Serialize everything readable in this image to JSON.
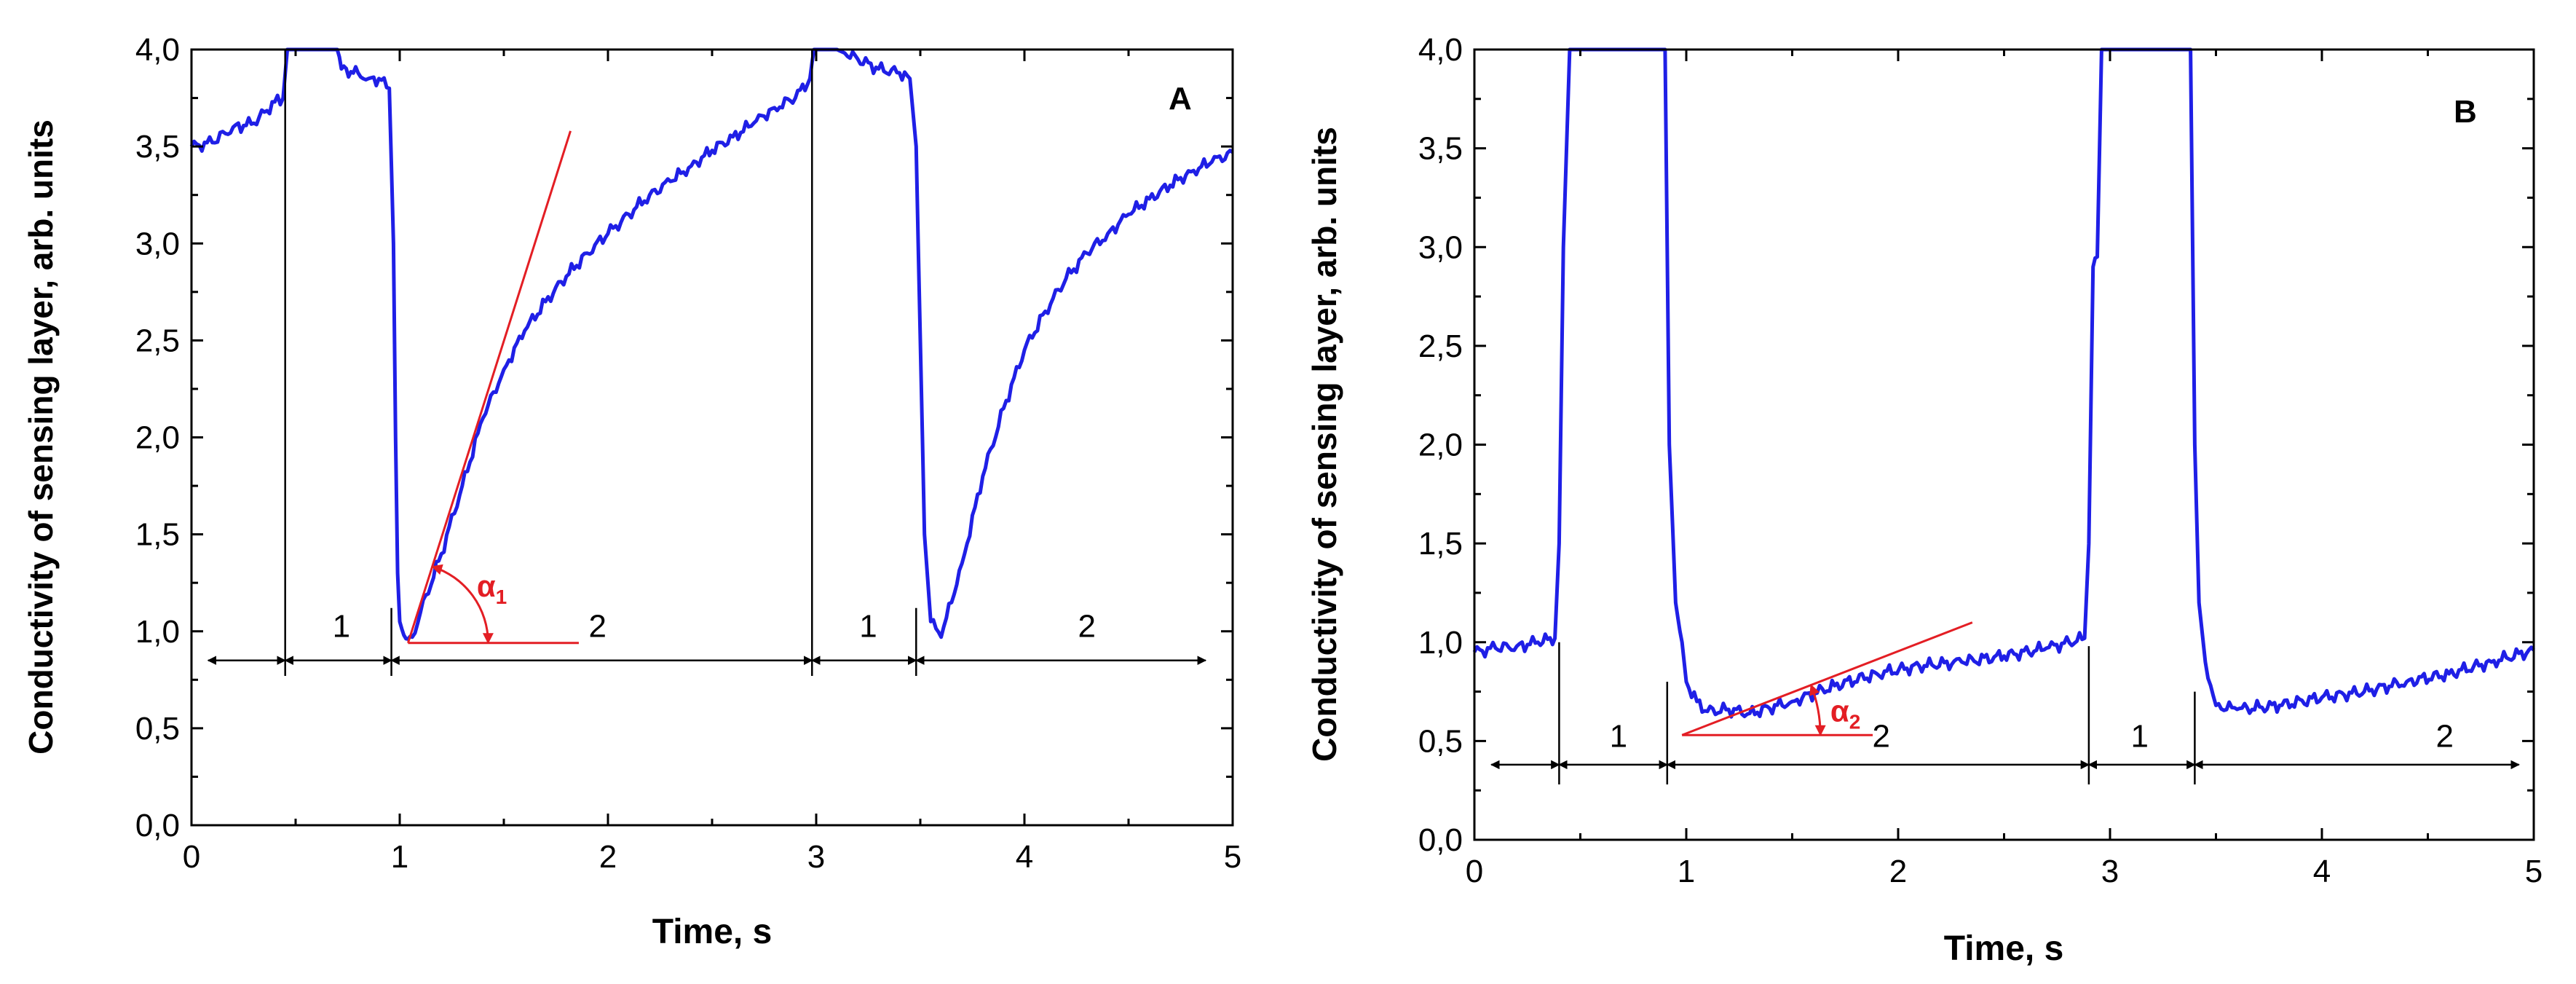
{
  "chart_data": [
    {
      "type": "line",
      "panel_letter": "A",
      "xlabel": "Time, s",
      "ylabel": "Conductivity of sensing layer, arb. units",
      "xlim": [
        0,
        5
      ],
      "ylim": [
        0,
        4
      ],
      "x_ticks": [
        "0",
        "1",
        "2",
        "3",
        "4",
        "5"
      ],
      "y_ticks": [
        "0,0",
        "0,5",
        "1,0",
        "1,5",
        "2,0",
        "2,5",
        "3,0",
        "3,5",
        "4,0"
      ],
      "series": [
        {
          "color": "#1f1fe6",
          "x": [
            0.0,
            0.1,
            0.2,
            0.3,
            0.4,
            0.44,
            0.46,
            0.5,
            0.6,
            0.7,
            0.72,
            0.8,
            0.85,
            0.9,
            0.95,
            0.97,
            0.98,
            0.99,
            1.0,
            1.02,
            1.04,
            1.06,
            1.1,
            1.2,
            1.3,
            1.4,
            1.5,
            1.6,
            1.7,
            1.8,
            1.9,
            2.0,
            2.1,
            2.2,
            2.3,
            2.4,
            2.5,
            2.6,
            2.7,
            2.8,
            2.9,
            2.97,
            2.99,
            3.0,
            3.1,
            3.2,
            3.3,
            3.4,
            3.45,
            3.48,
            3.5,
            3.52,
            3.55,
            3.6,
            3.7,
            3.8,
            3.9,
            4.0,
            4.1,
            4.2,
            4.3,
            4.4,
            4.5,
            4.6,
            4.7,
            4.8,
            4.9,
            5.0
          ],
          "y": [
            3.5,
            3.52,
            3.6,
            3.62,
            3.73,
            3.75,
            4.0,
            4.0,
            4.0,
            4.0,
            3.9,
            3.88,
            3.85,
            3.85,
            3.8,
            3.0,
            2.0,
            1.3,
            1.05,
            0.98,
            0.96,
            0.97,
            1.1,
            1.4,
            1.75,
            2.1,
            2.35,
            2.55,
            2.7,
            2.83,
            2.95,
            3.05,
            3.15,
            3.25,
            3.32,
            3.4,
            3.48,
            3.55,
            3.62,
            3.7,
            3.75,
            3.85,
            4.0,
            4.0,
            4.0,
            3.95,
            3.9,
            3.88,
            3.85,
            3.5,
            2.5,
            1.5,
            1.05,
            0.97,
            1.35,
            1.8,
            2.15,
            2.45,
            2.65,
            2.82,
            2.95,
            3.05,
            3.15,
            3.23,
            3.3,
            3.37,
            3.42,
            3.47
          ]
        }
      ],
      "annotations": {
        "segment_labels": [
          {
            "text": "1",
            "x": 0.72,
            "y": 0.97
          },
          {
            "text": "2",
            "x": 1.95,
            "y": 0.97
          },
          {
            "text": "1",
            "x": 3.25,
            "y": 0.97
          },
          {
            "text": "2",
            "x": 4.3,
            "y": 0.97
          }
        ],
        "vertical_markers": [
          {
            "x": 0.45,
            "y0": 0.77,
            "y1": 4.0
          },
          {
            "x": 0.96,
            "y0": 0.77,
            "y1": 1.12
          },
          {
            "x": 2.98,
            "y0": 0.77,
            "y1": 4.0
          },
          {
            "x": 3.48,
            "y0": 0.77,
            "y1": 1.12
          }
        ],
        "span_arrows": [
          {
            "from": 0.08,
            "to": 0.45,
            "y": 0.85
          },
          {
            "from": 0.45,
            "to": 0.96,
            "y": 0.85
          },
          {
            "from": 0.96,
            "to": 2.98,
            "y": 0.85
          },
          {
            "from": 2.98,
            "to": 3.48,
            "y": 0.85
          },
          {
            "from": 3.48,
            "to": 4.87,
            "y": 0.85
          }
        ],
        "angle_label": "α",
        "angle_subscript": "1",
        "angle_vertex": [
          1.04,
          0.94
        ],
        "tangent_end": [
          1.82,
          3.58
        ],
        "baseline_end": [
          1.86,
          0.94
        ],
        "angle_label_pos": [
          1.37,
          1.18
        ],
        "angle_color": "#e31e24"
      }
    },
    {
      "type": "line",
      "panel_letter": "B",
      "xlabel": "Time, s",
      "ylabel": "Conductivity of sensing layer, arb. units",
      "xlim": [
        0,
        5
      ],
      "ylim": [
        0,
        4
      ],
      "x_ticks": [
        "0",
        "1",
        "2",
        "3",
        "4",
        "5"
      ],
      "y_ticks": [
        "0,0",
        "0,5",
        "1,0",
        "1,5",
        "2,0",
        "2,5",
        "3,0",
        "3,5",
        "4,0"
      ],
      "series": [
        {
          "color": "#1f1fe6",
          "x": [
            0.0,
            0.1,
            0.2,
            0.3,
            0.38,
            0.4,
            0.42,
            0.45,
            0.5,
            0.7,
            0.9,
            0.92,
            0.95,
            0.98,
            1.0,
            1.05,
            1.1,
            1.2,
            1.3,
            1.5,
            1.7,
            1.9,
            2.1,
            2.3,
            2.5,
            2.7,
            2.88,
            2.9,
            2.92,
            2.94,
            2.96,
            3.0,
            3.2,
            3.38,
            3.4,
            3.42,
            3.45,
            3.5,
            3.6,
            3.8,
            4.0,
            4.2,
            4.4,
            4.6,
            4.8,
            5.0
          ],
          "y": [
            0.95,
            0.97,
            0.98,
            1.0,
            1.02,
            1.5,
            3.0,
            4.0,
            4.0,
            4.0,
            4.0,
            2.0,
            1.2,
            1.0,
            0.8,
            0.7,
            0.65,
            0.66,
            0.64,
            0.7,
            0.78,
            0.84,
            0.88,
            0.9,
            0.93,
            0.97,
            1.02,
            1.5,
            2.9,
            2.95,
            4.0,
            4.0,
            4.0,
            4.0,
            2.0,
            1.2,
            0.9,
            0.68,
            0.66,
            0.68,
            0.72,
            0.75,
            0.8,
            0.84,
            0.9,
            0.96
          ]
        }
      ],
      "annotations": {
        "segment_labels": [
          {
            "text": "1",
            "x": 0.68,
            "y": 0.47
          },
          {
            "text": "2",
            "x": 1.92,
            "y": 0.47
          },
          {
            "text": "1",
            "x": 3.14,
            "y": 0.47
          },
          {
            "text": "2",
            "x": 4.58,
            "y": 0.47
          }
        ],
        "vertical_markers": [
          {
            "x": 0.4,
            "y0": 0.28,
            "y1": 1.0
          },
          {
            "x": 0.91,
            "y0": 0.28,
            "y1": 0.8
          },
          {
            "x": 2.9,
            "y0": 0.28,
            "y1": 0.98
          },
          {
            "x": 3.4,
            "y0": 0.28,
            "y1": 0.75
          }
        ],
        "span_arrows": [
          {
            "from": 0.08,
            "to": 0.4,
            "y": 0.38
          },
          {
            "from": 0.4,
            "to": 0.91,
            "y": 0.38
          },
          {
            "from": 0.91,
            "to": 2.9,
            "y": 0.38
          },
          {
            "from": 2.9,
            "to": 3.4,
            "y": 0.38
          },
          {
            "from": 3.4,
            "to": 4.93,
            "y": 0.38
          }
        ],
        "angle_label": "α",
        "angle_subscript": "2",
        "angle_vertex": [
          0.98,
          0.53
        ],
        "tangent_end": [
          2.35,
          1.1
        ],
        "baseline_end": [
          1.88,
          0.53
        ],
        "angle_label_pos": [
          1.68,
          0.6
        ],
        "angle_color": "#e31e24"
      }
    }
  ]
}
